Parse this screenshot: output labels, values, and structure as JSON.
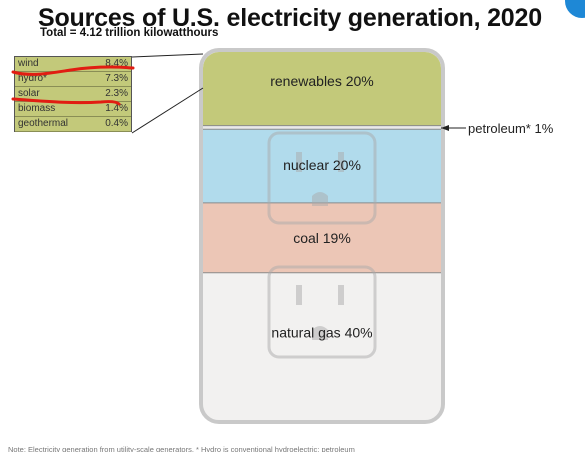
{
  "header": {
    "title": "Sources of U.S. electricity generation, 2020",
    "subtitle": "Total = 4.12 trillion kilowatthours"
  },
  "colors": {
    "renewables": "#c3c97a",
    "nuclear": "#b1dbec",
    "coal": "#ecc6b6",
    "natural_gas": "#f2f1f0",
    "outlet_frame": "#c9c9c9",
    "marker": "#e11d12",
    "badge": "#1e88d6"
  },
  "icons": [
    "electrical-outlet-icon"
  ],
  "chart_data": {
    "type": "bar",
    "stacked": true,
    "categories": [
      "renewables",
      "petroleum*",
      "nuclear",
      "coal",
      "natural gas"
    ],
    "values": [
      20,
      1,
      20,
      19,
      40
    ],
    "unit": "%",
    "labels": [
      "renewables 20%",
      "petroleum* 1%",
      "nuclear 20%",
      "coal 19%",
      "natural gas 40%"
    ],
    "breakdown": {
      "of": "renewables",
      "rows": [
        {
          "name": "wind",
          "value": "8.4%"
        },
        {
          "name": "hydro*",
          "value": "7.3%"
        },
        {
          "name": "solar",
          "value": "2.3%"
        },
        {
          "name": "biomass",
          "value": "1.4%"
        },
        {
          "name": "geothermal",
          "value": "0.4%"
        }
      ],
      "values": [
        8.4,
        7.3,
        2.3,
        1.4,
        0.4
      ]
    }
  },
  "footnote": "Note: Electricity generation from utility-scale generators. * Hydro is conventional hydroelectric; petroleum"
}
